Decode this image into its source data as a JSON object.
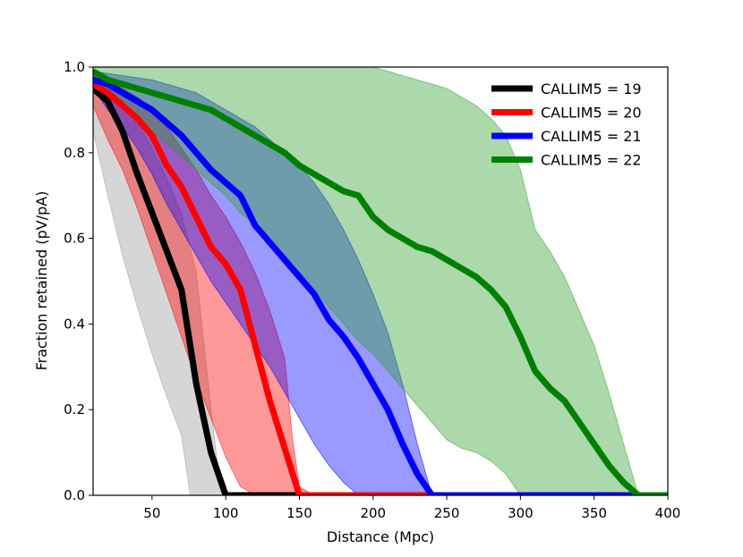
{
  "chart_data": {
    "type": "line",
    "title": "",
    "xlabel": "Distance (Mpc)",
    "ylabel": "Fraction retained (pV/pA)",
    "xlim": [
      10,
      400
    ],
    "ylim": [
      0,
      1
    ],
    "xticks": [
      50,
      100,
      150,
      200,
      250,
      300,
      350,
      400
    ],
    "yticks": [
      0.0,
      0.2,
      0.4,
      0.6,
      0.8,
      1.0
    ],
    "xtick_labels": [
      "50",
      "100",
      "150",
      "200",
      "250",
      "300",
      "350",
      "400"
    ],
    "ytick_labels": [
      "0.0",
      "0.2",
      "0.4",
      "0.6",
      "0.8",
      "1.0"
    ],
    "grid": false,
    "legend_position": "top-right",
    "series": [
      {
        "name": "CALLIM5 = 19",
        "color": "#000000",
        "fill_color": "#999999",
        "x": [
          10,
          20,
          30,
          40,
          50,
          60,
          70,
          80,
          90,
          100,
          110,
          400
        ],
        "y": [
          0.95,
          0.92,
          0.85,
          0.75,
          0.66,
          0.57,
          0.48,
          0.26,
          0.1,
          0.0,
          0.0,
          0.0
        ],
        "lower_x": [
          10,
          20,
          30,
          40,
          50,
          60,
          70,
          76,
          80,
          400
        ],
        "lower_y": [
          0.85,
          0.7,
          0.56,
          0.44,
          0.33,
          0.23,
          0.14,
          0.0,
          0.0,
          0.0
        ],
        "upper_x": [
          10,
          20,
          30,
          40,
          50,
          60,
          70,
          80,
          85,
          90,
          95,
          100,
          400
        ],
        "upper_y": [
          0.97,
          0.95,
          0.92,
          0.87,
          0.81,
          0.74,
          0.66,
          0.52,
          0.36,
          0.2,
          0.06,
          0.0,
          0.0
        ]
      },
      {
        "name": "CALLIM5 = 20",
        "color": "#ff0000",
        "fill_color": "#ff0000",
        "x": [
          10,
          20,
          30,
          40,
          50,
          60,
          70,
          80,
          90,
          100,
          110,
          120,
          130,
          140,
          150,
          160,
          400
        ],
        "y": [
          0.96,
          0.94,
          0.91,
          0.88,
          0.84,
          0.77,
          0.72,
          0.65,
          0.58,
          0.54,
          0.48,
          0.35,
          0.22,
          0.11,
          0.0,
          0.0,
          0.0
        ],
        "lower_x": [
          10,
          20,
          30,
          40,
          50,
          60,
          70,
          80,
          90,
          100,
          110,
          120,
          400
        ],
        "lower_y": [
          0.91,
          0.83,
          0.76,
          0.67,
          0.57,
          0.47,
          0.37,
          0.27,
          0.18,
          0.09,
          0.02,
          0.0,
          0.0
        ],
        "upper_x": [
          10,
          20,
          30,
          40,
          50,
          60,
          70,
          80,
          90,
          100,
          110,
          120,
          130,
          140,
          145,
          150,
          160,
          400
        ],
        "upper_y": [
          0.98,
          0.97,
          0.95,
          0.93,
          0.9,
          0.86,
          0.81,
          0.76,
          0.7,
          0.65,
          0.59,
          0.52,
          0.43,
          0.32,
          0.14,
          0.02,
          0.0,
          0.0
        ]
      },
      {
        "name": "CALLIM5 = 21",
        "color": "#0000ff",
        "fill_color": "#0000ff",
        "x": [
          10,
          20,
          30,
          40,
          50,
          60,
          70,
          80,
          90,
          100,
          110,
          120,
          130,
          140,
          150,
          160,
          170,
          180,
          190,
          200,
          210,
          220,
          230,
          240,
          250,
          400
        ],
        "y": [
          0.97,
          0.96,
          0.94,
          0.92,
          0.9,
          0.87,
          0.84,
          0.8,
          0.76,
          0.73,
          0.7,
          0.63,
          0.59,
          0.55,
          0.51,
          0.47,
          0.41,
          0.37,
          0.32,
          0.26,
          0.2,
          0.12,
          0.05,
          0.0,
          0.0,
          0.0
        ],
        "lower_x": [
          10,
          20,
          30,
          40,
          50,
          60,
          70,
          80,
          90,
          100,
          110,
          120,
          130,
          140,
          150,
          160,
          170,
          180,
          190,
          400
        ],
        "lower_y": [
          0.95,
          0.9,
          0.86,
          0.81,
          0.75,
          0.68,
          0.62,
          0.56,
          0.5,
          0.45,
          0.4,
          0.35,
          0.3,
          0.24,
          0.18,
          0.12,
          0.07,
          0.03,
          0.0,
          0.0
        ],
        "upper_x": [
          10,
          20,
          30,
          40,
          50,
          60,
          70,
          80,
          90,
          100,
          110,
          120,
          130,
          140,
          150,
          160,
          170,
          180,
          190,
          200,
          210,
          220,
          230,
          240,
          400
        ],
        "upper_y": [
          0.99,
          0.985,
          0.98,
          0.975,
          0.97,
          0.96,
          0.95,
          0.94,
          0.92,
          0.9,
          0.88,
          0.86,
          0.83,
          0.8,
          0.77,
          0.73,
          0.68,
          0.62,
          0.55,
          0.47,
          0.38,
          0.26,
          0.12,
          0.0,
          0.0
        ]
      },
      {
        "name": "CALLIM5 = 22",
        "color": "#008000",
        "fill_color": "#2ca02c",
        "x": [
          10,
          20,
          30,
          40,
          50,
          60,
          70,
          80,
          90,
          100,
          110,
          120,
          130,
          140,
          150,
          160,
          170,
          180,
          190,
          200,
          210,
          220,
          230,
          240,
          250,
          260,
          270,
          280,
          290,
          300,
          310,
          320,
          330,
          340,
          350,
          360,
          370,
          380,
          390,
          400
        ],
        "y": [
          0.99,
          0.97,
          0.96,
          0.95,
          0.94,
          0.93,
          0.92,
          0.91,
          0.9,
          0.88,
          0.86,
          0.84,
          0.82,
          0.8,
          0.77,
          0.75,
          0.73,
          0.71,
          0.7,
          0.65,
          0.62,
          0.6,
          0.58,
          0.57,
          0.55,
          0.53,
          0.51,
          0.48,
          0.44,
          0.37,
          0.29,
          0.25,
          0.22,
          0.17,
          0.12,
          0.07,
          0.03,
          0.0,
          0.0,
          0.0
        ],
        "lower_x": [
          10,
          20,
          30,
          40,
          50,
          60,
          70,
          80,
          90,
          100,
          110,
          120,
          130,
          140,
          150,
          160,
          170,
          180,
          190,
          200,
          210,
          220,
          230,
          240,
          250,
          260,
          270,
          280,
          290,
          300,
          310,
          400
        ],
        "lower_y": [
          0.97,
          0.94,
          0.91,
          0.88,
          0.85,
          0.82,
          0.79,
          0.76,
          0.73,
          0.7,
          0.66,
          0.63,
          0.59,
          0.56,
          0.52,
          0.48,
          0.44,
          0.4,
          0.36,
          0.33,
          0.29,
          0.25,
          0.21,
          0.17,
          0.13,
          0.11,
          0.1,
          0.08,
          0.05,
          0.0,
          0.0,
          0.0
        ],
        "upper_x": [
          10,
          50,
          100,
          150,
          190,
          200,
          210,
          220,
          230,
          240,
          250,
          260,
          270,
          280,
          290,
          300,
          310,
          320,
          330,
          340,
          350,
          360,
          370,
          380,
          390,
          400
        ],
        "upper_y": [
          1.0,
          1.0,
          1.0,
          1.0,
          1.0,
          1.0,
          0.99,
          0.98,
          0.97,
          0.96,
          0.95,
          0.93,
          0.91,
          0.88,
          0.84,
          0.76,
          0.62,
          0.57,
          0.51,
          0.43,
          0.35,
          0.24,
          0.12,
          0.0,
          0.0,
          0.0
        ]
      }
    ]
  }
}
